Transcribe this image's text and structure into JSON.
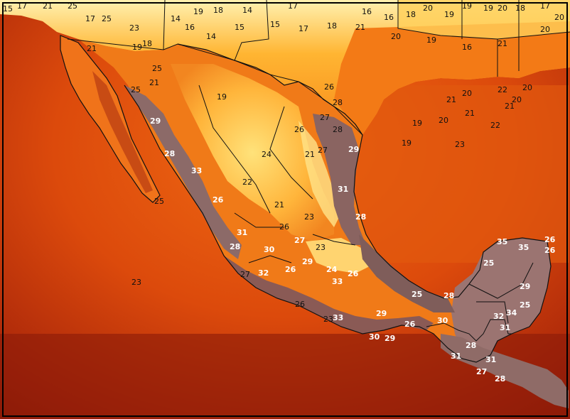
{
  "labels": {
    "north_mexico_land": [
      "25",
      "19",
      "26",
      "28",
      "27",
      "26",
      "28",
      "27",
      "24",
      "22",
      "21",
      "26",
      "23",
      "23",
      "21"
    ],
    "coastal_hot": [
      "29",
      "28",
      "33",
      "26",
      "31",
      "28",
      "30",
      "27",
      "32",
      "26",
      "29",
      "24",
      "26",
      "33",
      "31",
      "29",
      "28",
      "35",
      "35",
      "26",
      "26",
      "25",
      "29",
      "25",
      "34",
      "32",
      "31",
      "28",
      "30",
      "28",
      "31",
      "31",
      "27",
      "28",
      "29",
      "29",
      "33",
      "30",
      "26",
      "25"
    ],
    "ocean": [
      "21",
      "25",
      "23",
      "27",
      "26",
      "23",
      "23",
      "22",
      "21",
      "20",
      "20",
      "19",
      "19",
      "21",
      "21",
      "22",
      "20",
      "20"
    ],
    "usa": [
      "15",
      "17",
      "21",
      "25",
      "25",
      "23",
      "25",
      "21",
      "19",
      "18",
      "19",
      "18",
      "14",
      "17",
      "16",
      "16",
      "18",
      "20",
      "19",
      "19",
      "19",
      "20",
      "18",
      "17",
      "20",
      "20",
      "21",
      "16",
      "19",
      "20",
      "21",
      "18",
      "17",
      "15",
      "15",
      "14",
      "16",
      "14",
      "17"
    ]
  },
  "colors": {
    "border": "#111111",
    "frame": "#000000"
  }
}
